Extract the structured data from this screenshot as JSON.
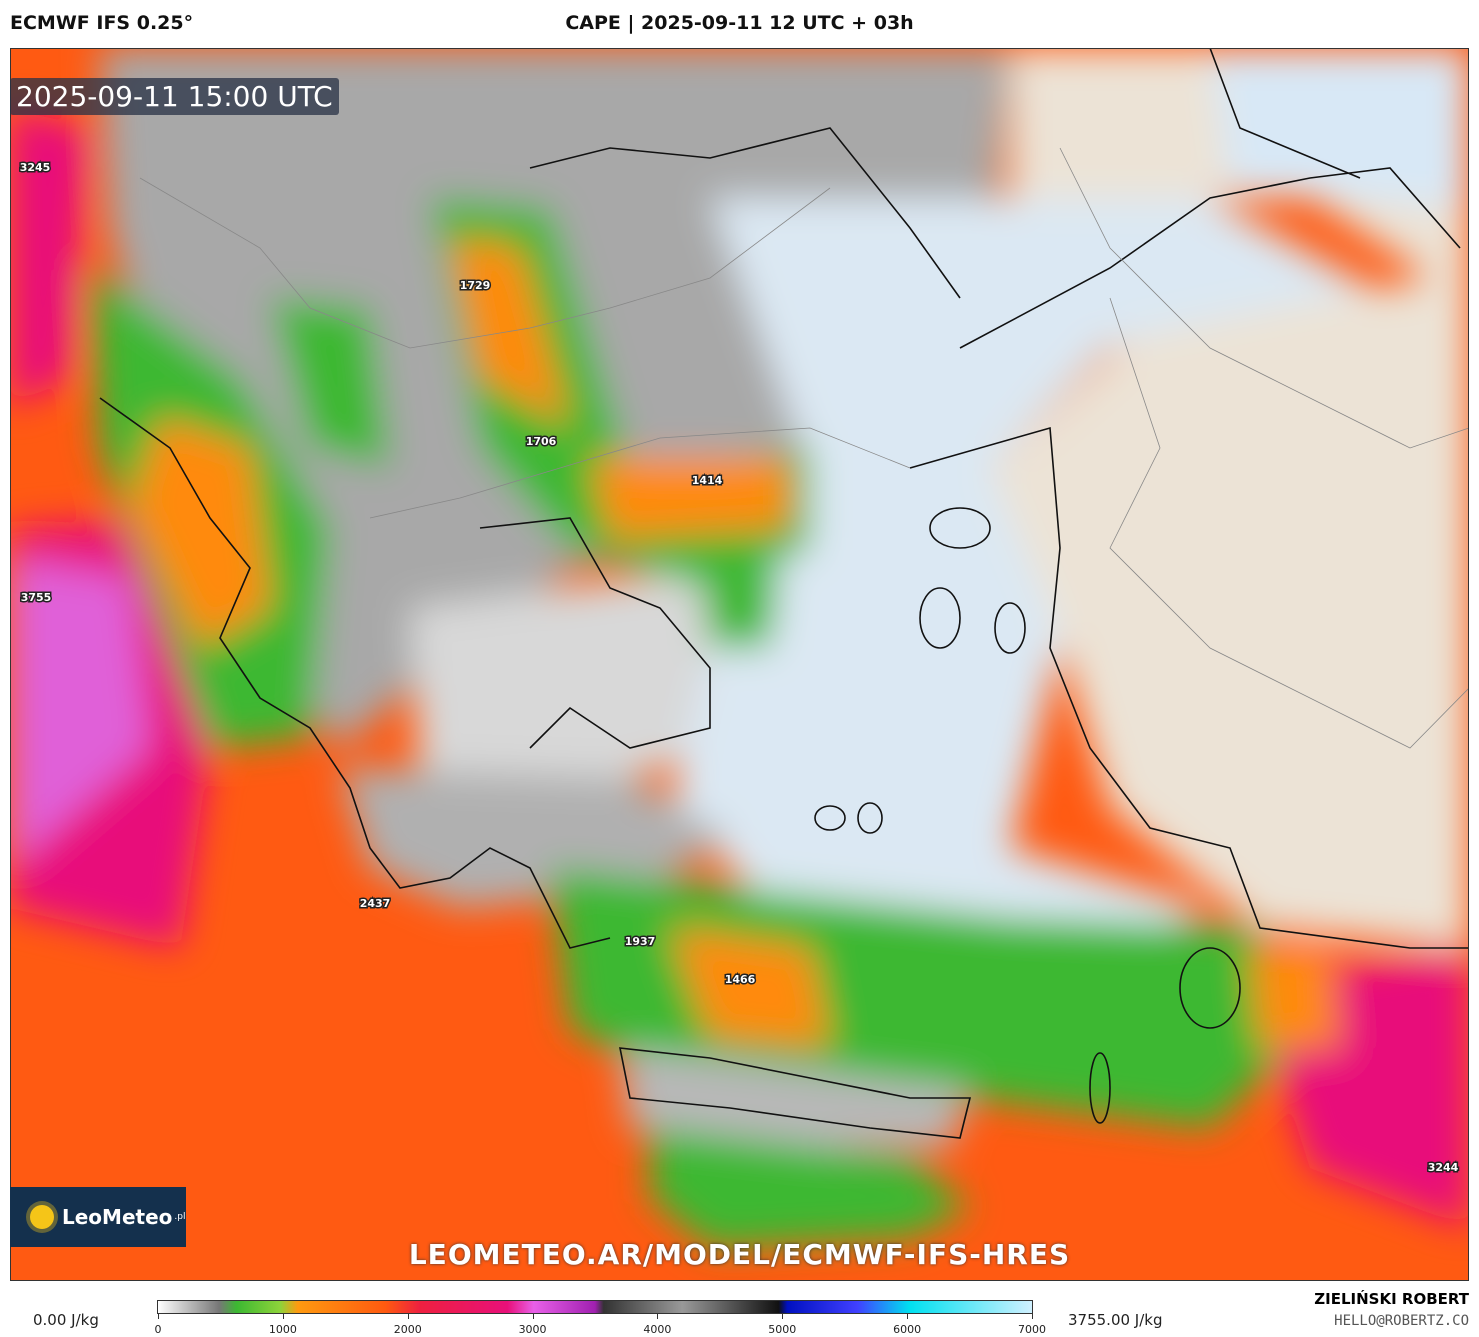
{
  "header": {
    "model": "ECMWF IFS 0.25°",
    "title": "CAPE | 2025-09-11 12 UTC + 03h"
  },
  "timestamp": "2025-09-11 15:00 UTC",
  "map": {
    "labels": [
      3245,
      1729,
      1706,
      1414,
      3755,
      2437,
      1937,
      1466,
      3244
    ]
  },
  "logo": {
    "name": "LeoMeteo",
    "suffix": ".pl"
  },
  "watermark": "LEOMETEO.AR/MODEL/ECMWF-IFS-HRES",
  "colorbar": {
    "min_label": "0.00 J/kg",
    "max_label": "3755.00 J/kg",
    "ticks": [
      0,
      1000,
      2000,
      3000,
      4000,
      5000,
      6000,
      7000
    ]
  },
  "credit": {
    "author": "ZIELIŃSKI ROBERT",
    "email": "HELLO@ROBERTZ.CO"
  }
}
